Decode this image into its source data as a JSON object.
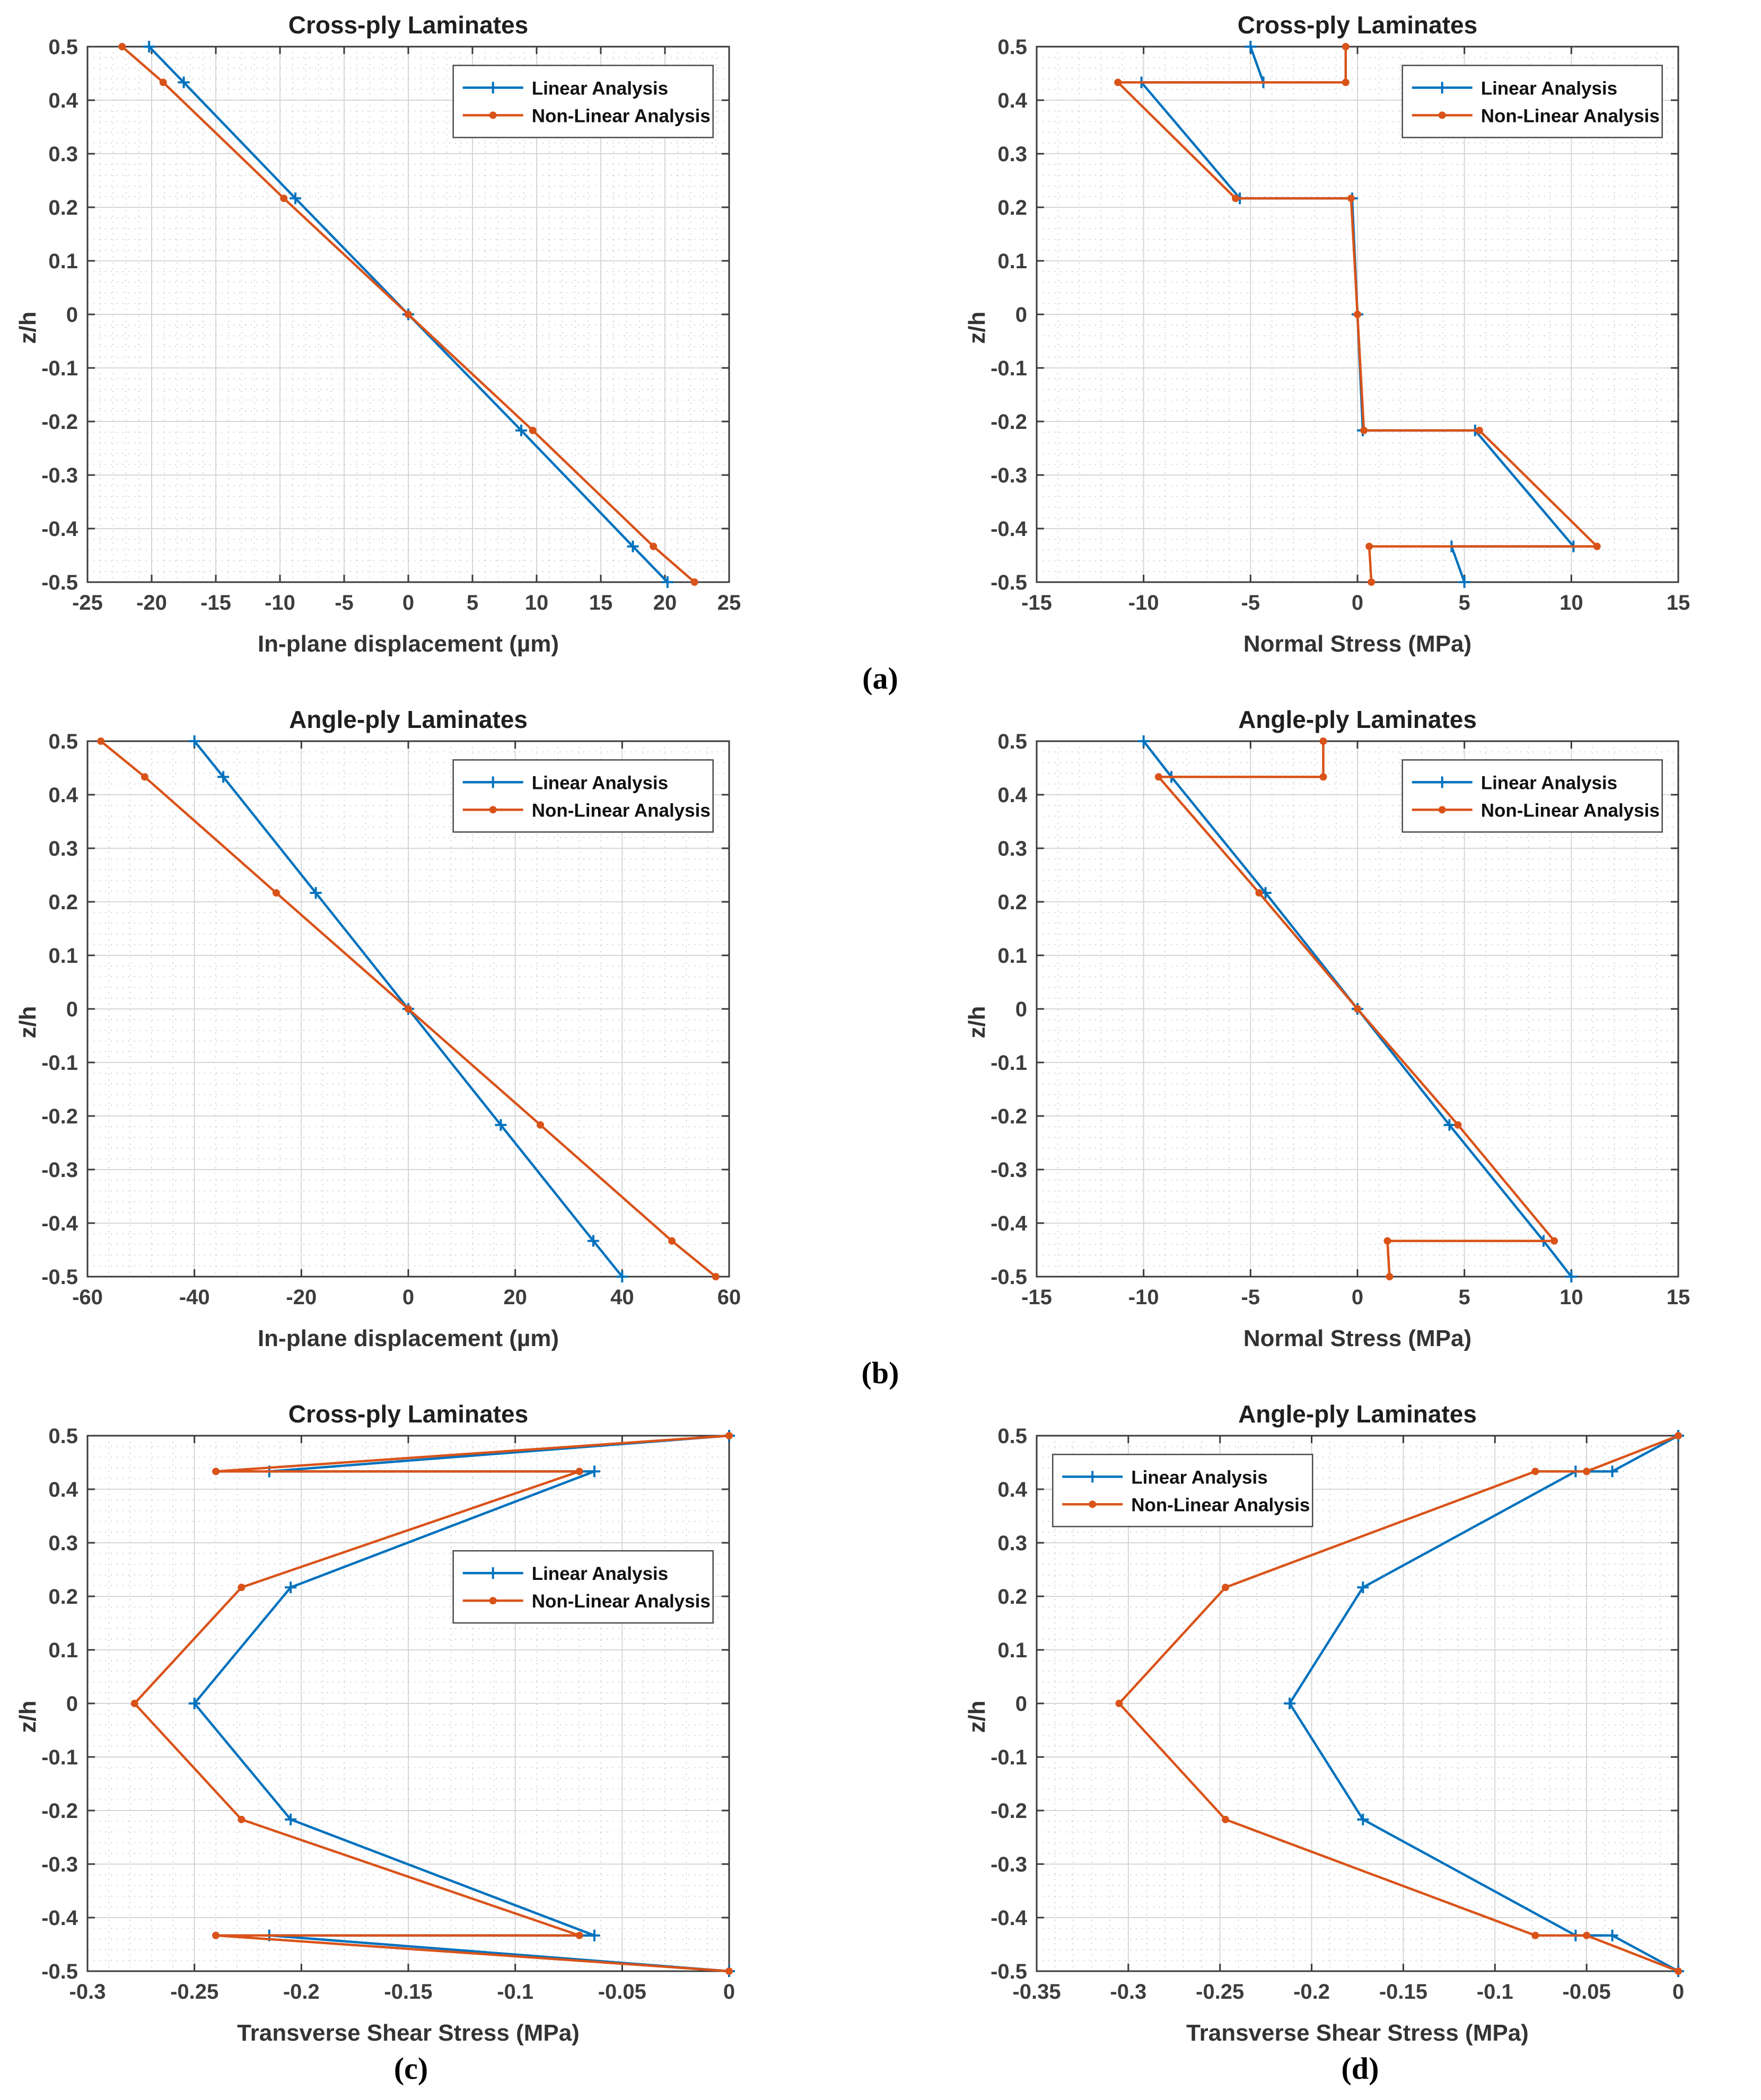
{
  "figure": {
    "background": "#ffffff",
    "description_labels": {
      "linear": "Linear Analysis",
      "nonlinear": "Non-Linear Analysis"
    }
  },
  "colors": {
    "linear": "#0072BD",
    "nonlinear": "#D95319",
    "grid_major": "#d6d6d6",
    "grid_minor": "#c9cdd4",
    "axis": "#3a3a3a",
    "tick_text": "#3d3d3d"
  },
  "captions": {
    "a": "(a)",
    "b": "(b)",
    "c": "(c)",
    "d": "(d)"
  },
  "chart_data": [
    {
      "id": "cross-ply-displacement",
      "type": "line",
      "title": "Cross-ply Laminates",
      "xlabel": "In-plane displacement (µm)",
      "ylabel": "z/h",
      "xlim": [
        -25,
        25
      ],
      "ylim": [
        -0.5,
        0.5
      ],
      "xticks": [
        -25,
        -20,
        -15,
        -10,
        -5,
        0,
        5,
        10,
        15,
        20,
        25
      ],
      "yticks": [
        0.5,
        0.4,
        0.3,
        0.2,
        0.1,
        0,
        -0.1,
        -0.2,
        -0.3,
        -0.4,
        -0.5
      ],
      "grid": "major+minor",
      "legend_pos": [
        0.57,
        0.035
      ],
      "series": [
        {
          "name": "Linear Analysis",
          "marker": "plus",
          "color": "#0072BD",
          "points": [
            [
              -20.2,
              0.5
            ],
            [
              -17.5,
              0.4333
            ],
            [
              -8.8,
              0.2167
            ],
            [
              0,
              0
            ],
            [
              8.8,
              -0.2167
            ],
            [
              17.5,
              -0.4333
            ],
            [
              20.2,
              -0.5
            ]
          ]
        },
        {
          "name": "Non-Linear Analysis",
          "marker": "dot",
          "color": "#D95319",
          "points": [
            [
              -22.3,
              0.5
            ],
            [
              -19.1,
              0.4333
            ],
            [
              -9.7,
              0.2167
            ],
            [
              0,
              0
            ],
            [
              9.7,
              -0.2167
            ],
            [
              19.1,
              -0.4333
            ],
            [
              22.3,
              -0.5
            ]
          ]
        }
      ]
    },
    {
      "id": "cross-ply-normal-stress",
      "type": "line",
      "title": "Cross-ply Laminates",
      "xlabel": "Normal Stress (MPa)",
      "ylabel": "z/h",
      "xlim": [
        -15,
        15
      ],
      "ylim": [
        -0.5,
        0.5
      ],
      "xticks": [
        -15,
        -10,
        -5,
        0,
        5,
        10,
        15
      ],
      "yticks": [
        0.5,
        0.4,
        0.3,
        0.2,
        0.1,
        0,
        -0.1,
        -0.2,
        -0.3,
        -0.4,
        -0.5
      ],
      "grid": "major+minor",
      "legend_pos": [
        0.57,
        0.035
      ],
      "series": [
        {
          "name": "Linear Analysis",
          "marker": "plus",
          "color": "#0072BD",
          "points": [
            [
              -5.0,
              0.5
            ],
            [
              -4.4,
              0.4333
            ],
            [
              -10.1,
              0.4333
            ],
            [
              -5.5,
              0.2167
            ],
            [
              -0.25,
              0.2167
            ],
            [
              0,
              0
            ],
            [
              0.25,
              -0.2167
            ],
            [
              5.5,
              -0.2167
            ],
            [
              10.1,
              -0.4333
            ],
            [
              4.4,
              -0.4333
            ],
            [
              5.0,
              -0.5
            ]
          ]
        },
        {
          "name": "Non-Linear Analysis",
          "marker": "dot",
          "color": "#D95319",
          "points": [
            [
              -0.55,
              0.5
            ],
            [
              -0.55,
              0.4333
            ],
            [
              -11.2,
              0.4333
            ],
            [
              -5.7,
              0.2167
            ],
            [
              -0.3,
              0.2167
            ],
            [
              0,
              0
            ],
            [
              0.3,
              -0.2167
            ],
            [
              5.7,
              -0.2167
            ],
            [
              11.2,
              -0.4333
            ],
            [
              0.55,
              -0.4333
            ],
            [
              0.65,
              -0.5
            ]
          ]
        }
      ]
    },
    {
      "id": "angle-ply-displacement",
      "type": "line",
      "title": "Angle-ply Laminates",
      "xlabel": "In-plane displacement (µm)",
      "ylabel": "z/h",
      "xlim": [
        -60,
        60
      ],
      "ylim": [
        -0.5,
        0.5
      ],
      "xticks": [
        -60,
        -40,
        -20,
        0,
        20,
        40,
        60
      ],
      "yticks": [
        0.5,
        0.4,
        0.3,
        0.2,
        0.1,
        0,
        -0.1,
        -0.2,
        -0.3,
        -0.4,
        -0.5
      ],
      "grid": "major+minor",
      "legend_pos": [
        0.57,
        0.035
      ],
      "series": [
        {
          "name": "Linear Analysis",
          "marker": "plus",
          "color": "#0072BD",
          "points": [
            [
              -40,
              0.5
            ],
            [
              -34.6,
              0.4333
            ],
            [
              -17.3,
              0.2167
            ],
            [
              0,
              0
            ],
            [
              17.3,
              -0.2167
            ],
            [
              34.6,
              -0.4333
            ],
            [
              40,
              -0.5
            ]
          ]
        },
        {
          "name": "Non-Linear Analysis",
          "marker": "dot",
          "color": "#D95319",
          "points": [
            [
              -57.5,
              0.5
            ],
            [
              -49.3,
              0.4333
            ],
            [
              -24.7,
              0.2167
            ],
            [
              0,
              0
            ],
            [
              24.7,
              -0.2167
            ],
            [
              49.3,
              -0.4333
            ],
            [
              57.5,
              -0.5
            ]
          ]
        }
      ]
    },
    {
      "id": "angle-ply-normal-stress",
      "type": "line",
      "title": "Angle-ply Laminates",
      "xlabel": "Normal Stress (MPa)",
      "ylabel": "z/h",
      "xlim": [
        -15,
        15
      ],
      "ylim": [
        -0.5,
        0.5
      ],
      "xticks": [
        -15,
        -10,
        -5,
        0,
        5,
        10,
        15
      ],
      "yticks": [
        0.5,
        0.4,
        0.3,
        0.2,
        0.1,
        0,
        -0.1,
        -0.2,
        -0.3,
        -0.4,
        -0.5
      ],
      "grid": "major+minor",
      "legend_pos": [
        0.57,
        0.035
      ],
      "series": [
        {
          "name": "Linear Analysis",
          "marker": "plus",
          "color": "#0072BD",
          "points": [
            [
              -10,
              0.5
            ],
            [
              -8.7,
              0.4333
            ],
            [
              -4.3,
              0.2167
            ],
            [
              0,
              0
            ],
            [
              4.3,
              -0.2167
            ],
            [
              8.7,
              -0.4333
            ],
            [
              10,
              -0.5
            ]
          ]
        },
        {
          "name": "Non-Linear Analysis",
          "marker": "dot",
          "color": "#D95319",
          "points": [
            [
              -1.6,
              0.5
            ],
            [
              -1.6,
              0.4333
            ],
            [
              -9.3,
              0.4333
            ],
            [
              -4.6,
              0.2167
            ],
            [
              0,
              0
            ],
            [
              4.7,
              -0.2167
            ],
            [
              9.2,
              -0.4333
            ],
            [
              1.4,
              -0.4333
            ],
            [
              1.5,
              -0.5
            ]
          ]
        }
      ]
    },
    {
      "id": "cross-ply-shear-stress",
      "type": "line",
      "title": "Cross-ply Laminates",
      "xlabel": "Transverse Shear Stress (MPa)",
      "ylabel": "z/h",
      "xlim": [
        -0.3,
        0
      ],
      "ylim": [
        -0.5,
        0.5
      ],
      "xticks": [
        -0.3,
        -0.25,
        -0.2,
        -0.15,
        -0.1,
        -0.05,
        0
      ],
      "yticks": [
        0.5,
        0.4,
        0.3,
        0.2,
        0.1,
        0,
        -0.1,
        -0.2,
        -0.3,
        -0.4,
        -0.5
      ],
      "grid": "major+minor",
      "legend_pos": [
        0.57,
        0.215
      ],
      "series": [
        {
          "name": "Linear Analysis",
          "marker": "plus",
          "color": "#0072BD",
          "points": [
            [
              0,
              0.5
            ],
            [
              -0.215,
              0.4333
            ],
            [
              -0.063,
              0.4333
            ],
            [
              -0.205,
              0.2167
            ],
            [
              -0.25,
              0
            ],
            [
              -0.205,
              -0.2167
            ],
            [
              -0.063,
              -0.4333
            ],
            [
              -0.215,
              -0.4333
            ],
            [
              0,
              -0.5
            ]
          ]
        },
        {
          "name": "Non-Linear Analysis",
          "marker": "dot",
          "color": "#D95319",
          "points": [
            [
              0,
              0.5
            ],
            [
              -0.24,
              0.4333
            ],
            [
              -0.07,
              0.4333
            ],
            [
              -0.228,
              0.2167
            ],
            [
              -0.278,
              0
            ],
            [
              -0.228,
              -0.2167
            ],
            [
              -0.07,
              -0.4333
            ],
            [
              -0.24,
              -0.4333
            ],
            [
              0,
              -0.5
            ]
          ]
        }
      ]
    },
    {
      "id": "angle-ply-shear-stress",
      "type": "line",
      "title": "Angle-ply Laminates",
      "xlabel": "Transverse Shear Stress (MPa)",
      "ylabel": "z/h",
      "xlim": [
        -0.35,
        0
      ],
      "ylim": [
        -0.5,
        0.5
      ],
      "xticks": [
        -0.35,
        -0.3,
        -0.25,
        -0.2,
        -0.15,
        -0.1,
        -0.05,
        0
      ],
      "yticks": [
        0.5,
        0.4,
        0.3,
        0.2,
        0.1,
        0,
        -0.1,
        -0.2,
        -0.3,
        -0.4,
        -0.5
      ],
      "grid": "major+minor",
      "legend_pos": [
        0.025,
        0.035
      ],
      "series": [
        {
          "name": "Linear Analysis",
          "marker": "plus",
          "color": "#0072BD",
          "points": [
            [
              0,
              0.5
            ],
            [
              -0.036,
              0.4333
            ],
            [
              -0.056,
              0.4333
            ],
            [
              -0.172,
              0.2167
            ],
            [
              -0.212,
              0
            ],
            [
              -0.172,
              -0.2167
            ],
            [
              -0.056,
              -0.4333
            ],
            [
              -0.036,
              -0.4333
            ],
            [
              0,
              -0.5
            ]
          ]
        },
        {
          "name": "Non-Linear Analysis",
          "marker": "dot",
          "color": "#D95319",
          "points": [
            [
              0,
              0.5
            ],
            [
              -0.05,
              0.4333
            ],
            [
              -0.078,
              0.4333
            ],
            [
              -0.247,
              0.2167
            ],
            [
              -0.305,
              0
            ],
            [
              -0.247,
              -0.2167
            ],
            [
              -0.078,
              -0.4333
            ],
            [
              -0.05,
              -0.4333
            ],
            [
              0,
              -0.5
            ]
          ]
        }
      ]
    }
  ]
}
